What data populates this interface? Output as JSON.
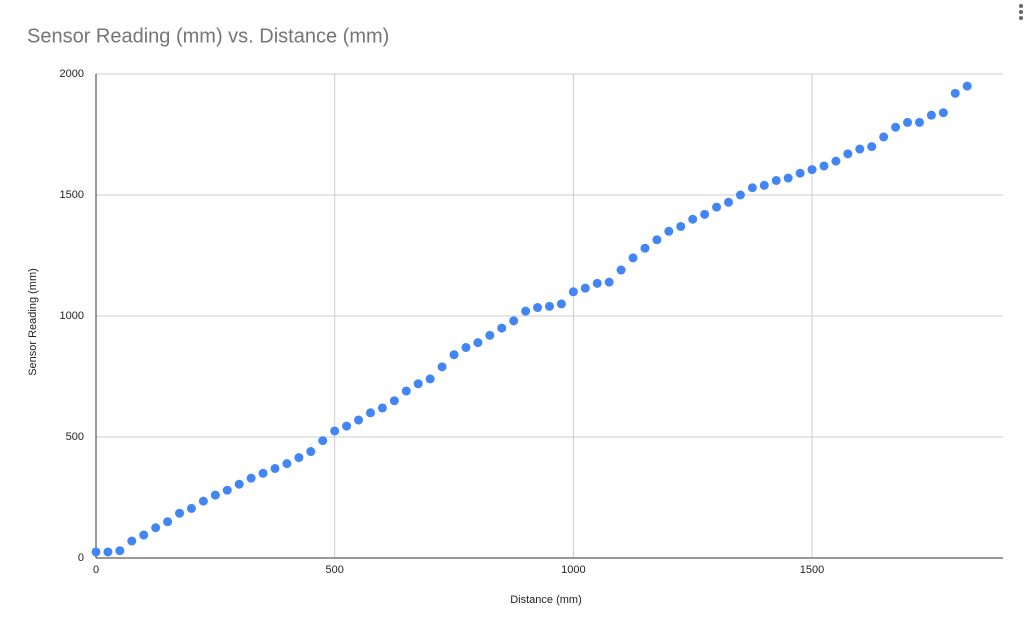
{
  "chart_data": {
    "type": "scatter",
    "title": "Sensor Reading (mm) vs. Distance (mm)",
    "x_label": "Distance (mm)",
    "y_label": "Sensor Reading (mm)",
    "color": "#4285f4",
    "x": [
      0,
      25,
      50,
      75,
      100,
      125,
      150,
      175,
      200,
      225,
      250,
      275,
      300,
      325,
      350,
      375,
      400,
      425,
      450,
      475,
      500,
      525,
      550,
      575,
      600,
      625,
      650,
      675,
      700,
      725,
      750,
      775,
      800,
      825,
      850,
      875,
      900,
      925,
      950,
      975,
      1000,
      1025,
      1050,
      1075,
      1100,
      1125,
      1150,
      1175,
      1200,
      1225,
      1250,
      1275,
      1300,
      1325,
      1350,
      1375,
      1400,
      1425,
      1450,
      1475,
      1500,
      1525,
      1550,
      1575,
      1600,
      1625,
      1650,
      1675,
      1700,
      1725,
      1750,
      1775,
      1800,
      1825
    ],
    "values": [
      25,
      25,
      30,
      70,
      95,
      125,
      150,
      185,
      205,
      235,
      260,
      280,
      305,
      330,
      350,
      370,
      390,
      415,
      440,
      485,
      525,
      545,
      570,
      600,
      620,
      650,
      690,
      720,
      740,
      790,
      840,
      870,
      890,
      920,
      950,
      980,
      1020,
      1035,
      1040,
      1050,
      1100,
      1115,
      1135,
      1140,
      1190,
      1240,
      1280,
      1315,
      1350,
      1370,
      1400,
      1420,
      1450,
      1470,
      1500,
      1530,
      1540,
      1560,
      1570,
      1590,
      1605,
      1620,
      1640,
      1670,
      1690,
      1700,
      1740,
      1780,
      1800,
      1800,
      1830,
      1840,
      1920,
      1950
    ],
    "xlim": [
      0,
      1900
    ],
    "xticks": [
      0,
      500,
      1000,
      1500
    ],
    "ylim": [
      0,
      2000
    ],
    "yticks": [
      0,
      500,
      1000,
      1500,
      2000
    ],
    "grid": true
  }
}
